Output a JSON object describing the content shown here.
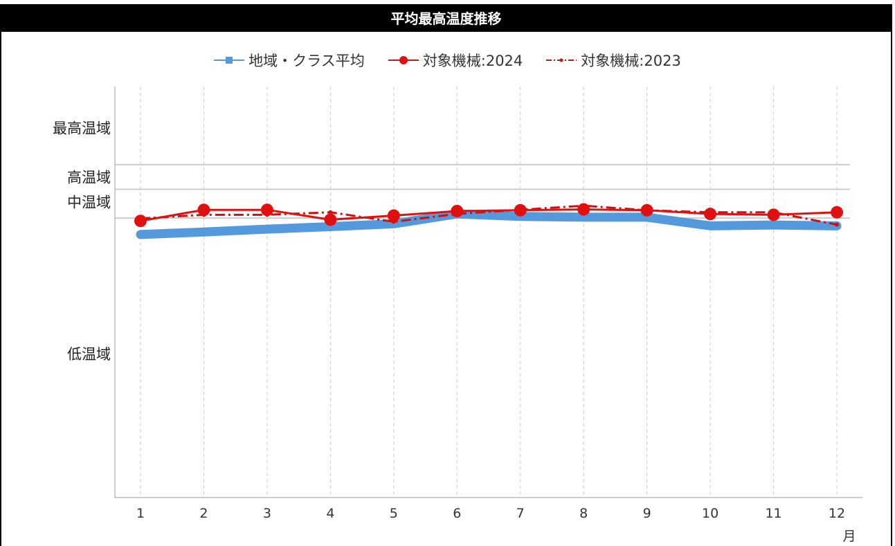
{
  "title": "平均最高温度推移",
  "legend": [
    {
      "label": "地域・クラス平均",
      "series": 0
    },
    {
      "label": "対象機械:2024",
      "series": 1
    },
    {
      "label": "対象機械:2023",
      "series": 2
    }
  ],
  "colors": {
    "avg": "#5599dd",
    "y2024": "#e01010",
    "y2023": "#cc1111",
    "grid": "#cccccc",
    "band_line": "#cccccc"
  },
  "chart_data": {
    "type": "line",
    "categories": [
      "1",
      "2",
      "3",
      "4",
      "5",
      "6",
      "7",
      "8",
      "9",
      "10",
      "11",
      "12"
    ],
    "xlabel": "月",
    "ylabel": "",
    "ylim": [
      0,
      100
    ],
    "y_bands": [
      {
        "label": "最高温域",
        "value": 90
      },
      {
        "label": "高温域",
        "value": 78
      },
      {
        "label": "中温域",
        "value": 72
      }
    ],
    "y_band_low_label": {
      "label": "低温域",
      "value": 35
    },
    "band_lines": [
      81,
      75,
      68
    ],
    "series": [
      {
        "name": "地域・クラス平均",
        "style": "thick",
        "values": [
          64.0,
          64.6,
          65.3,
          65.9,
          66.6,
          69.0,
          68.4,
          68.2,
          68.2,
          66.1,
          66.3,
          66.1
        ]
      },
      {
        "name": "対象機械:2024",
        "style": "marker",
        "values": [
          67.3,
          70.0,
          70.0,
          67.6,
          68.6,
          69.7,
          69.9,
          70.1,
          69.9,
          69.0,
          68.8,
          69.4
        ]
      },
      {
        "name": "対象機械:2023",
        "style": "dashdot",
        "values": [
          67.9,
          68.8,
          68.8,
          69.4,
          67.1,
          69.0,
          70.0,
          71.0,
          69.9,
          69.4,
          69.4,
          66.4
        ]
      }
    ]
  }
}
